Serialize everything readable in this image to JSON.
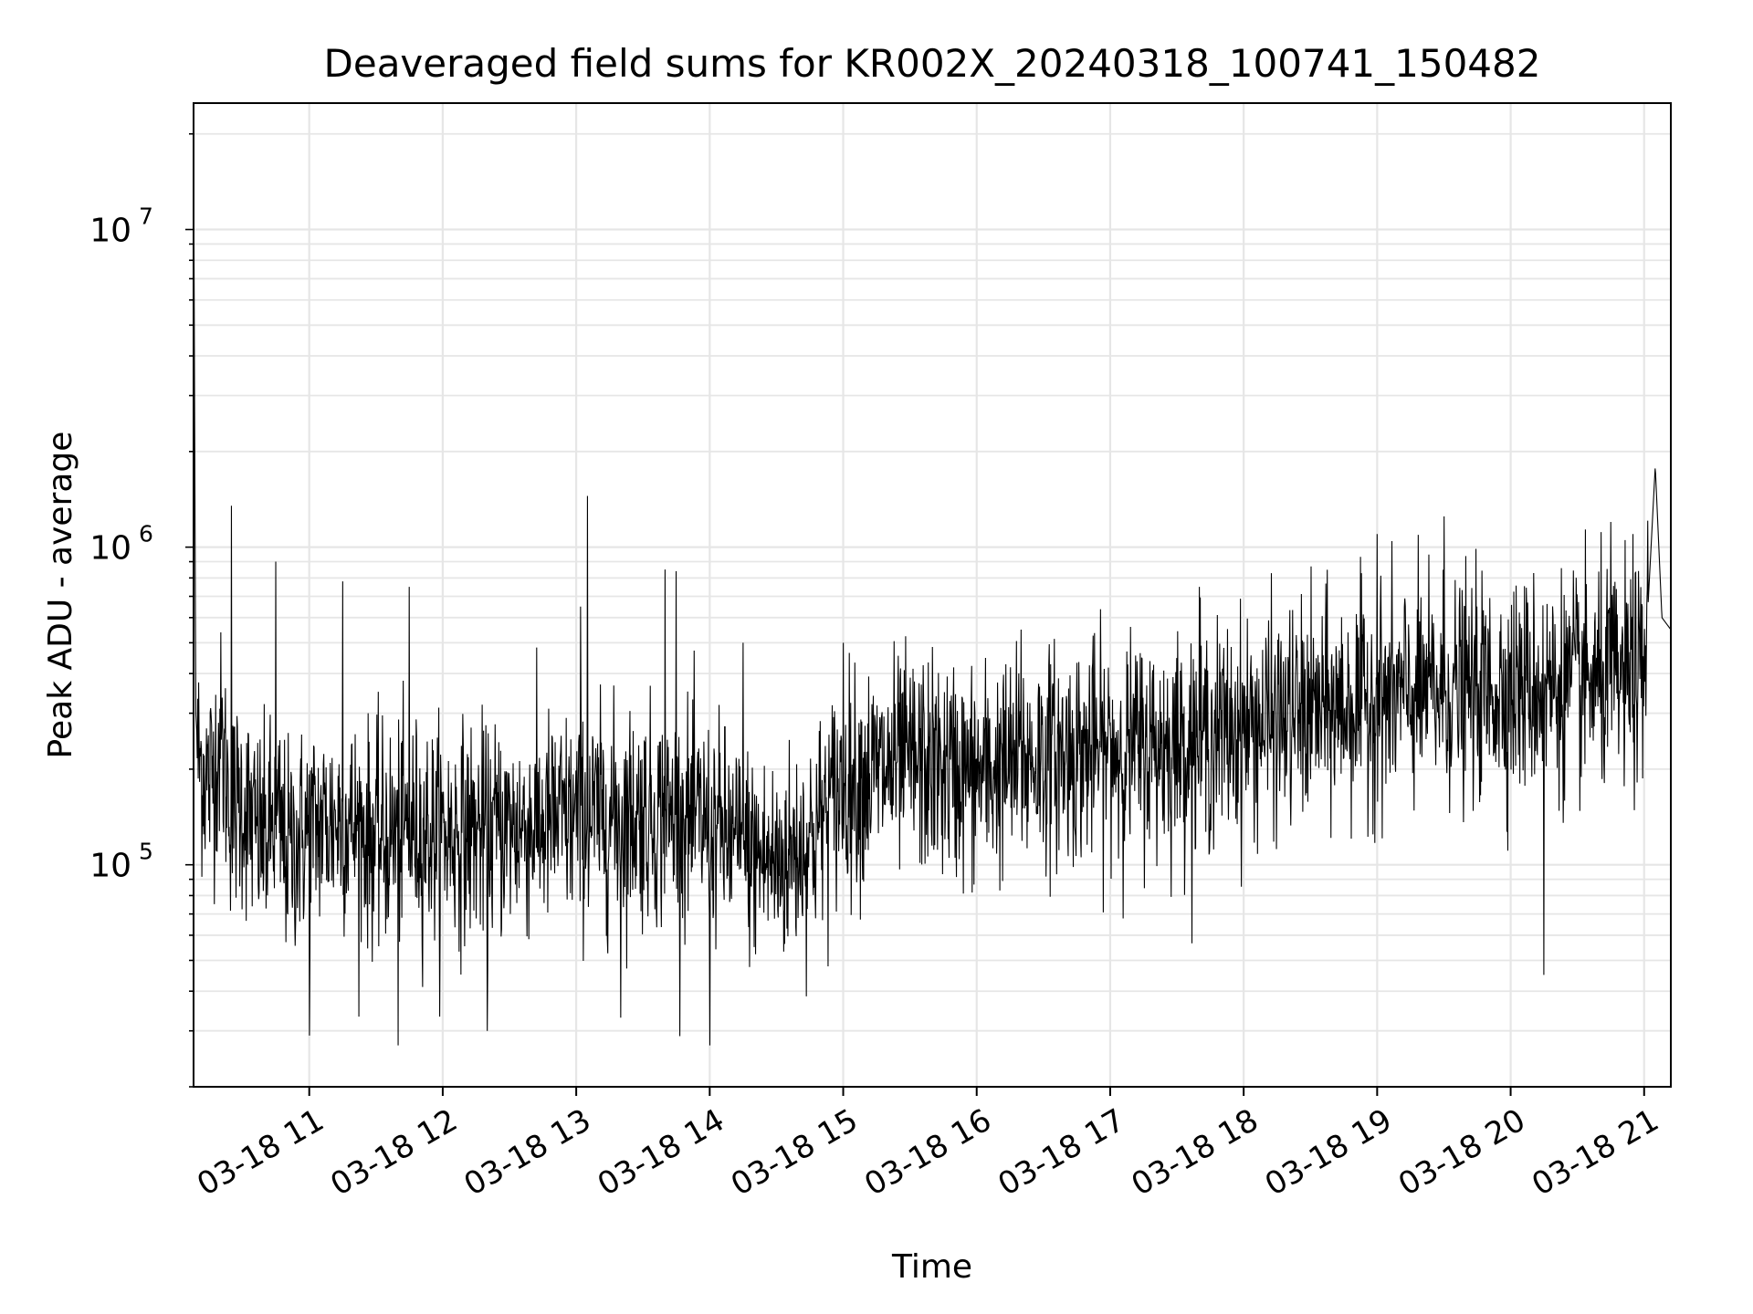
{
  "chart_data": {
    "type": "line",
    "title": "Deaveraged field sums for KR002X_20240318_100741_150482",
    "xlabel": "Time",
    "ylabel": "Peak ADU - average",
    "yscale": "log",
    "x_range": [
      "03-18 10:08",
      "03-18 21:12"
    ],
    "ylim": [
      20000,
      25000000
    ],
    "grid": true,
    "legend": "none",
    "line_color": "#000000",
    "x_ticks": [
      {
        "label": "03-18 11",
        "hour": 11
      },
      {
        "label": "03-18 12",
        "hour": 12
      },
      {
        "label": "03-18 13",
        "hour": 13
      },
      {
        "label": "03-18 14",
        "hour": 14
      },
      {
        "label": "03-18 15",
        "hour": 15
      },
      {
        "label": "03-18 16",
        "hour": 16
      },
      {
        "label": "03-18 17",
        "hour": 17
      },
      {
        "label": "03-18 18",
        "hour": 18
      },
      {
        "label": "03-18 19",
        "hour": 19
      },
      {
        "label": "03-18 20",
        "hour": 20
      },
      {
        "label": "03-18 21",
        "hour": 21
      }
    ],
    "y_ticks": [
      {
        "base": "10",
        "exp": "5",
        "value": 100000
      },
      {
        "base": "10",
        "exp": "6",
        "value": 1000000
      },
      {
        "base": "10",
        "exp": "7",
        "value": 10000000
      }
    ],
    "series": [
      {
        "points": [
          [
            "03-18 10:08",
            20000000
          ],
          [
            "03-18 10:09",
            300000
          ],
          [
            "03-18 10:10",
            220000
          ],
          [
            "03-18 10:15",
            180000
          ],
          [
            "03-18 10:20",
            250000
          ],
          [
            "03-18 10:25",
            150000
          ],
          [
            "03-18 10:30",
            160000
          ],
          [
            "03-18 10:35",
            130000
          ],
          [
            "03-18 10:40",
            120000
          ],
          [
            "03-18 10:45",
            140000
          ],
          [
            "03-18 10:50",
            110000
          ],
          [
            "03-18 11:00",
            130000
          ],
          [
            "03-18 11:15",
            140000
          ],
          [
            "03-18 11:30",
            120000
          ],
          [
            "03-18 11:45",
            130000
          ],
          [
            "03-18 12:00",
            125000
          ],
          [
            "03-18 12:30",
            130000
          ],
          [
            "03-18 13:00",
            140000
          ],
          [
            "03-18 13:30",
            145000
          ],
          [
            "03-18 14:00",
            135000
          ],
          [
            "03-18 14:15",
            110000
          ],
          [
            "03-18 14:30",
            100000
          ],
          [
            "03-18 14:45",
            120000
          ],
          [
            "03-18 15:00",
            180000
          ],
          [
            "03-18 15:30",
            210000
          ],
          [
            "03-18 16:00",
            190000
          ],
          [
            "03-18 16:30",
            220000
          ],
          [
            "03-18 17:00",
            230000
          ],
          [
            "03-18 17:30",
            240000
          ],
          [
            "03-18 18:00",
            270000
          ],
          [
            "03-18 18:30",
            300000
          ],
          [
            "03-18 19:00",
            330000
          ],
          [
            "03-18 19:30",
            350000
          ],
          [
            "03-18 20:00",
            360000
          ],
          [
            "03-18 20:30",
            370000
          ],
          [
            "03-18 21:00",
            380000
          ],
          [
            "03-18 21:05",
            1800000
          ],
          [
            "03-18 21:08",
            600000
          ],
          [
            "03-18 21:12",
            550000
          ]
        ],
        "noise_decades": 0.17,
        "spike_points": [
          [
            "03-18 10:25",
            1350000
          ],
          [
            "03-18 10:45",
            900000
          ],
          [
            "03-18 11:15",
            780000
          ],
          [
            "03-18 11:45",
            750000
          ],
          [
            "03-18 13:05",
            1450000
          ],
          [
            "03-18 13:02",
            650000
          ],
          [
            "03-18 13:40",
            850000
          ],
          [
            "03-18 13:45",
            840000
          ],
          [
            "03-18 14:15",
            500000
          ],
          [
            "03-18 15:00",
            500000
          ],
          [
            "03-18 16:20",
            550000
          ],
          [
            "03-18 17:40",
            750000
          ],
          [
            "03-18 19:00",
            1100000
          ],
          [
            "03-18 19:30",
            1250000
          ],
          [
            "03-18 20:45",
            1200000
          ],
          [
            "03-18 20:55",
            1100000
          ],
          [
            "03-18 12:20",
            30000
          ],
          [
            "03-18 11:00",
            29000
          ],
          [
            "03-18 11:40",
            27000
          ],
          [
            "03-18 14:00",
            27000
          ],
          [
            "03-18 13:20",
            33000
          ],
          [
            "03-18 20:15",
            45000
          ]
        ]
      }
    ]
  }
}
